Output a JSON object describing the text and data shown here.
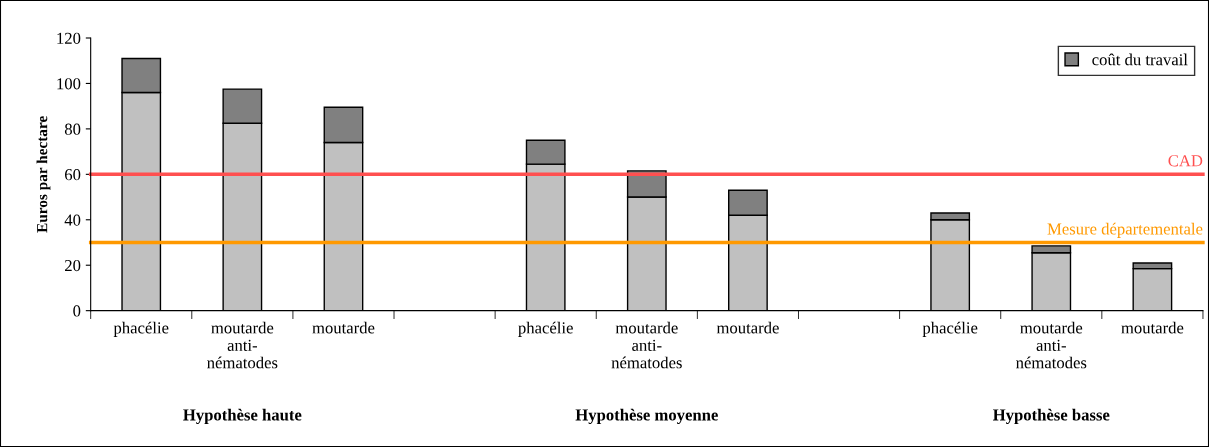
{
  "chart_data": {
    "type": "bar",
    "stacked": true,
    "categories": [
      "phacélie",
      "moutarde\nanti-\nnématodes",
      "moutarde",
      null,
      "phacélie",
      "moutarde\nanti-\nnématodes",
      "moutarde",
      null,
      "phacélie",
      "moutarde\nanti-\nnématodes",
      "moutarde"
    ],
    "series": [
      {
        "color": "#c0c0c0",
        "values": [
          96,
          82.5,
          74,
          null,
          64.5,
          50,
          42,
          null,
          40,
          25.5,
          18.5
        ]
      },
      {
        "name": "coût du travail",
        "color": "#808080",
        "values": [
          15,
          15,
          15.5,
          null,
          10.5,
          11.5,
          11,
          null,
          3,
          3,
          2.5
        ]
      }
    ],
    "ylabel": "Euros par hectare",
    "ylim": [
      0,
      120
    ],
    "yticks": [
      0,
      20,
      40,
      60,
      80,
      100,
      120
    ],
    "ref_lines": [
      {
        "axis": "y",
        "value": 60,
        "label": "CAD",
        "color": "#ff5050"
      },
      {
        "axis": "y",
        "value": 30,
        "label": "Mesure départementale",
        "color": "#ff9900"
      }
    ],
    "annotations": [
      "Hypothèse haute",
      "Hypothèse moyenne",
      "Hypothèse basse"
    ],
    "legend": "top right",
    "grid": false
  }
}
